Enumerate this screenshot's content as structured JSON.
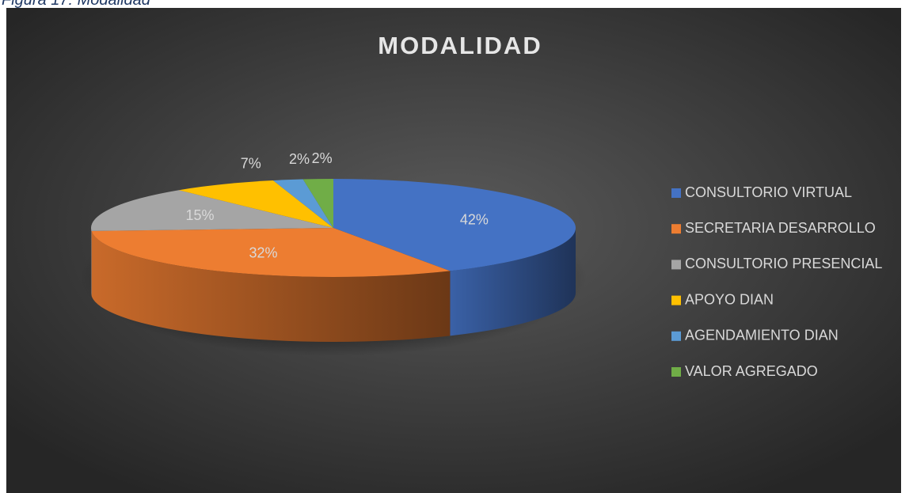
{
  "caption": "Figura 17: Modalidad",
  "chart_data": {
    "type": "pie3d",
    "title": "MODALIDAD",
    "categories": [
      "CONSULTORIO VIRTUAL",
      "SECRETARIA DESARROLLO",
      "CONSULTORIO PRESENCIAL",
      "APOYO DIAN",
      "AGENDAMIENTO DIAN",
      "VALOR AGREGADO"
    ],
    "values": [
      42,
      32,
      15,
      7,
      2,
      2
    ],
    "value_labels": [
      "42%",
      "32%",
      "15%",
      "7%",
      "2%",
      "2%"
    ],
    "colors": [
      "#4472c4",
      "#ed7d31",
      "#a5a5a5",
      "#ffc000",
      "#5b9bd5",
      "#70ad47"
    ],
    "legend": "right"
  }
}
